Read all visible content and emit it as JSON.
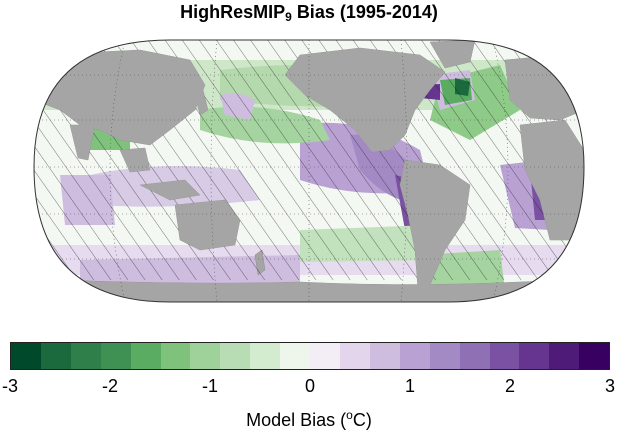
{
  "title": {
    "main": "HighResMIP",
    "subscript": "9",
    "suffix": "Bias (1995-2014)"
  },
  "colorbar": {
    "label_main": "Model Bias (",
    "label_sup": "o",
    "label_end": "C)",
    "ticks": [
      "-3",
      "-2",
      "-1",
      "0",
      "1",
      "2",
      "3"
    ],
    "colors": [
      "#00492b",
      "#1b6a3e",
      "#2f7f4a",
      "#3e9152",
      "#5aac62",
      "#7ec27c",
      "#9ed29a",
      "#b8ddb4",
      "#d3ebcf",
      "#eef6ec",
      "#f3eef6",
      "#e3d5ec",
      "#cfbde0",
      "#b9a2d3",
      "#a38ac4",
      "#8f70b5",
      "#7a51a3",
      "#66358f",
      "#4f1b78",
      "#380060"
    ]
  },
  "map": {
    "projection": "Equal Earth",
    "land_color": "#a5a5a5",
    "ocean_base": "#ffffff",
    "hatching": "stippled where bias not significant"
  }
}
